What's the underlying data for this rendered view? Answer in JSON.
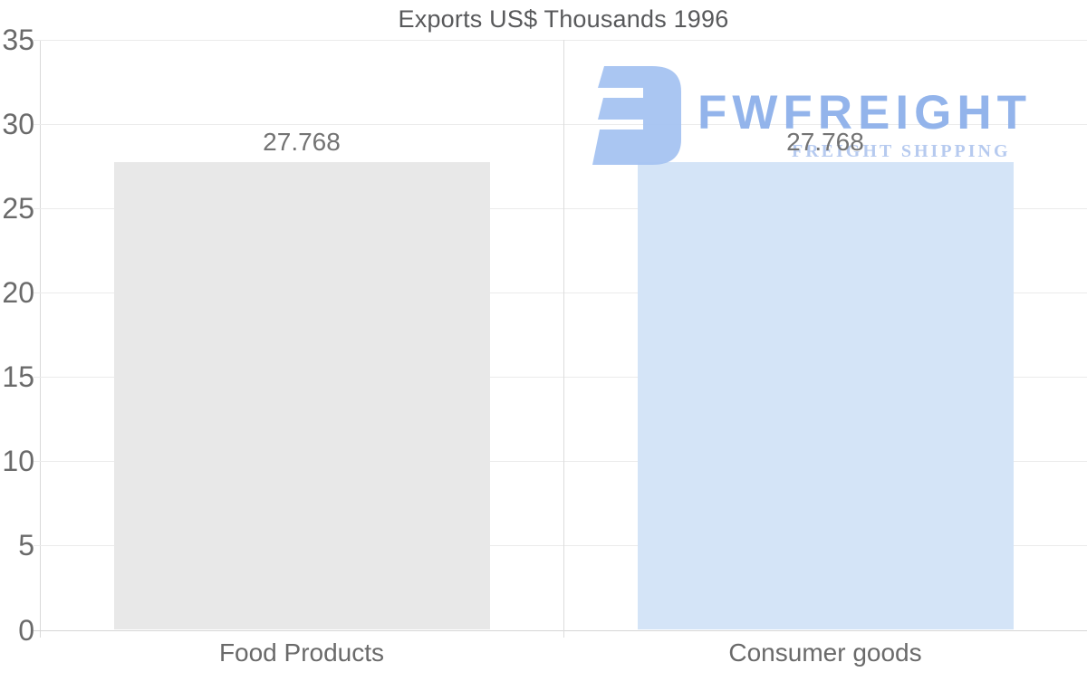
{
  "title": "Exports US$ Thousands 1996",
  "chart_data": {
    "type": "bar",
    "title": "Exports US$ Thousands 1996",
    "categories": [
      "Food Products",
      "Consumer goods"
    ],
    "values": [
      27.768,
      27.768
    ],
    "value_labels": [
      "27.768",
      "27.768"
    ],
    "series": [
      {
        "name": "Exports US$ Thousands 1996",
        "values": [
          27.768,
          27.768
        ]
      }
    ],
    "xlabel": "",
    "ylabel": "",
    "ylim": [
      0,
      35
    ],
    "yticks": [
      0,
      5,
      10,
      15,
      20,
      25,
      30,
      35
    ],
    "grid": true,
    "legend": "none",
    "bar_colors": [
      "#e8e8e8",
      "#d4e4f7"
    ]
  },
  "watermark": {
    "brand": "FWFREIGHT",
    "tagline": "FREIGHT SHIPPING",
    "icon": "fwfreight-logo-icon",
    "brand_color": "#8eb1ea",
    "tagline_color": "#b3c8ef",
    "icon_color": "#a6c4f2"
  },
  "colors": {
    "background": "#ffffff",
    "title_text": "#58595b",
    "axis_text": "#6a6a6a",
    "value_label_text": "#737373",
    "gridline": "#ebebeb",
    "baseline": "#d5d5d5",
    "axis_line": "#d9d9d9",
    "divider_line": "#dddddd"
  }
}
